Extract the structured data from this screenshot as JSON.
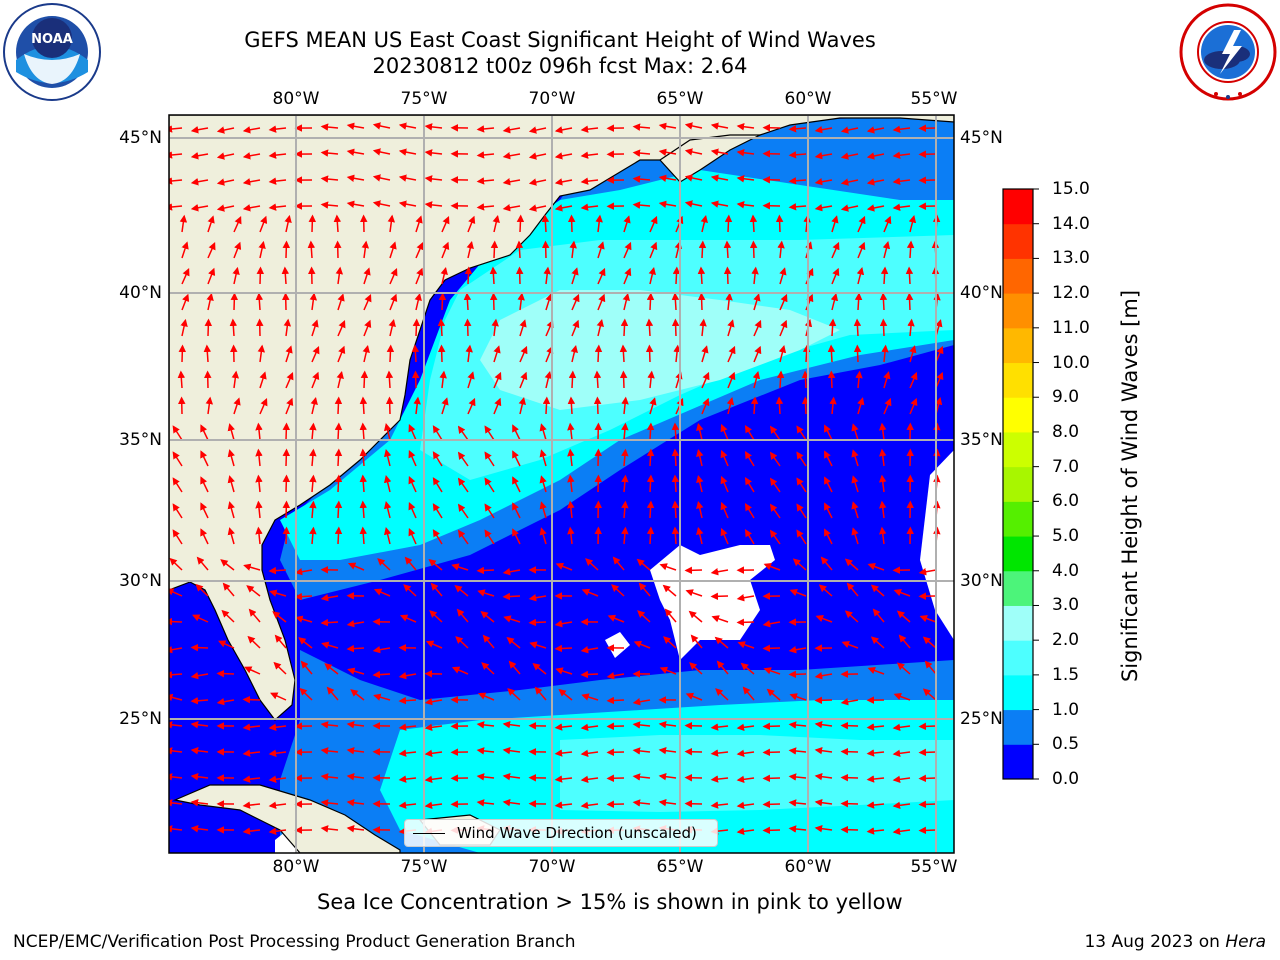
{
  "header": {
    "title_line1": "GEFS MEAN US East Coast Significant Height of Wind Waves",
    "title_line2": "20230812 t00z 096h fcst   Max: 2.64"
  },
  "logos": {
    "left": "noaa-logo",
    "right": "national-weather-service-logo"
  },
  "map": {
    "lon_labels": [
      "80°W",
      "75°W",
      "70°W",
      "65°W",
      "60°W",
      "55°W"
    ],
    "lat_labels": [
      "45°N",
      "40°N",
      "35°N",
      "30°N",
      "25°N"
    ],
    "land_color": "#efefdc",
    "missing_color": "#ffffff",
    "arrow_color": "#ff0000",
    "grid_color": "#b0b0b0"
  },
  "colorbar": {
    "label": "Significant Height of Wind Waves [m]",
    "ticks": [
      "0.0",
      "0.5",
      "1.0",
      "1.5",
      "2.0",
      "3.0",
      "4.0",
      "5.0",
      "6.0",
      "7.0",
      "8.0",
      "9.0",
      "10.0",
      "11.0",
      "12.0",
      "13.0",
      "14.0",
      "15.0"
    ],
    "colors": [
      "#0000ff",
      "#0b7ef5",
      "#00ffff",
      "#4dffff",
      "#9ffff9",
      "#4cf47a",
      "#00e600",
      "#55ef00",
      "#a8f600",
      "#ccff00",
      "#ffff00",
      "#ffe000",
      "#ffb800",
      "#ff8f00",
      "#ff6600",
      "#ff3300",
      "#ff0000"
    ]
  },
  "legend": {
    "label": "Wind Wave Direction (unscaled)"
  },
  "notes": {
    "sea_ice": "Sea Ice Concentration > 15% is shown in pink to yellow"
  },
  "footer": {
    "left": "NCEP/EMC/Verification Post Processing Product Generation Branch",
    "date": "13 Aug 2023 on",
    "machine": "Hera"
  }
}
